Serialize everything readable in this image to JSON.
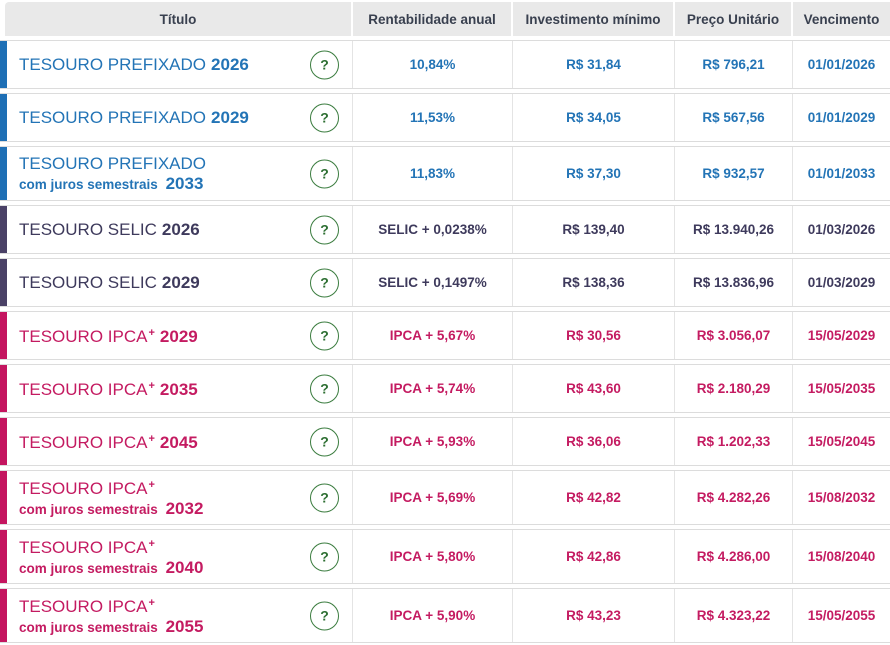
{
  "table": {
    "columns": [
      "Título",
      "Rentabilidade anual",
      "Investimento mínimo",
      "Preço Unitário",
      "Vencimento"
    ],
    "help_label": "?",
    "juros_label": "com juros semestrais",
    "rows": [
      {
        "type": "prefixado",
        "name": "TESOURO PREFIXADO",
        "sup": "",
        "juros": false,
        "year": "2026",
        "rate": "10,84%",
        "min": "R$ 31,84",
        "price": "R$ 796,21",
        "maturity": "01/01/2026"
      },
      {
        "type": "prefixado",
        "name": "TESOURO PREFIXADO",
        "sup": "",
        "juros": false,
        "year": "2029",
        "rate": "11,53%",
        "min": "R$ 34,05",
        "price": "R$ 567,56",
        "maturity": "01/01/2029"
      },
      {
        "type": "prefixado",
        "name": "TESOURO PREFIXADO",
        "sup": "",
        "juros": true,
        "year": "2033",
        "rate": "11,83%",
        "min": "R$ 37,30",
        "price": "R$ 932,57",
        "maturity": "01/01/2033"
      },
      {
        "type": "selic",
        "name": "TESOURO SELIC",
        "sup": "",
        "juros": false,
        "year": "2026",
        "rate": "SELIC + 0,0238%",
        "min": "R$ 139,40",
        "price": "R$ 13.940,26",
        "maturity": "01/03/2026"
      },
      {
        "type": "selic",
        "name": "TESOURO SELIC",
        "sup": "",
        "juros": false,
        "year": "2029",
        "rate": "SELIC + 0,1497%",
        "min": "R$ 138,36",
        "price": "R$ 13.836,96",
        "maturity": "01/03/2029"
      },
      {
        "type": "ipca",
        "name": "TESOURO IPCA",
        "sup": "+",
        "juros": false,
        "year": "2029",
        "rate": "IPCA + 5,67%",
        "min": "R$ 30,56",
        "price": "R$ 3.056,07",
        "maturity": "15/05/2029"
      },
      {
        "type": "ipca",
        "name": "TESOURO IPCA",
        "sup": "+",
        "juros": false,
        "year": "2035",
        "rate": "IPCA + 5,74%",
        "min": "R$ 43,60",
        "price": "R$ 2.180,29",
        "maturity": "15/05/2035"
      },
      {
        "type": "ipca",
        "name": "TESOURO IPCA",
        "sup": "+",
        "juros": false,
        "year": "2045",
        "rate": "IPCA + 5,93%",
        "min": "R$ 36,06",
        "price": "R$ 1.202,33",
        "maturity": "15/05/2045"
      },
      {
        "type": "ipca",
        "name": "TESOURO IPCA",
        "sup": "+",
        "juros": true,
        "year": "2032",
        "rate": "IPCA + 5,69%",
        "min": "R$ 42,82",
        "price": "R$ 4.282,26",
        "maturity": "15/08/2032"
      },
      {
        "type": "ipca",
        "name": "TESOURO IPCA",
        "sup": "+",
        "juros": true,
        "year": "2040",
        "rate": "IPCA + 5,80%",
        "min": "R$ 42,86",
        "price": "R$ 4.286,00",
        "maturity": "15/08/2040"
      },
      {
        "type": "ipca",
        "name": "TESOURO IPCA",
        "sup": "+",
        "juros": true,
        "year": "2055",
        "rate": "IPCA + 5,90%",
        "min": "R$ 43,23",
        "price": "R$ 4.323,22",
        "maturity": "15/05/2055"
      }
    ]
  },
  "colors": {
    "prefixado_bar": "#1e6fb5",
    "prefixado_text": "#2374b6",
    "selic_bar": "#4a4166",
    "selic_text": "#3e3a5c",
    "ipca_bar": "#c4155f",
    "ipca_text": "#c41b61",
    "header_bg": "#e9e9e9",
    "header_text": "#39404f",
    "help_green": "#377e3a",
    "divider": "#dcdcdc"
  }
}
